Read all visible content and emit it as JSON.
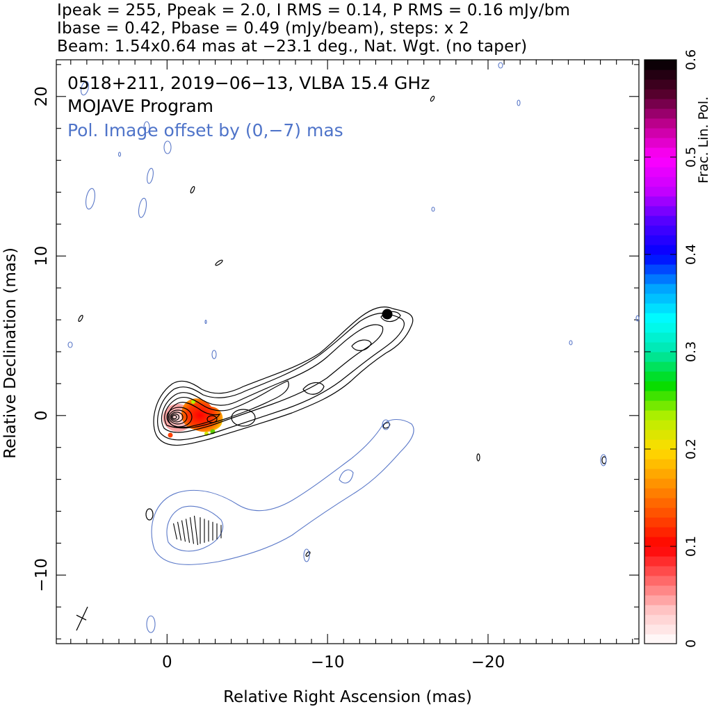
{
  "header": {
    "line1": "Ipeak = 255, Ppeak = 2.0, I RMS = 0.14, P RMS = 0.16 mJy/bm",
    "line2": "Ibase = 0.42, Pbase = 0.49 (mJy/beam), steps: x 2",
    "line3": "Beam: 1.54x0.64 mas at −23.1 deg., Nat. Wgt. (no taper)"
  },
  "annotations": {
    "source": "0518+211, 2019−06−13, VLBA 15.4 GHz",
    "program": "MOJAVE Program",
    "offset_note": "Pol. Image offset by (0,−7) mas"
  },
  "colors": {
    "total_intensity_contours": "#000000",
    "polarized_contours": "#5a78c8",
    "offset_note_text": "#4f74c9"
  },
  "chart_data": {
    "type": "heatmap",
    "title": "",
    "xlabel": "Relative Right Ascension (mas)",
    "ylabel": "Relative Declination (mas)",
    "xlim": [
      6.9,
      -29.4
    ],
    "ylim": [
      -14.3,
      22.3
    ],
    "x_ticks": [
      0,
      -10,
      -20
    ],
    "x_tick_labels": [
      "0",
      "−10",
      "−20"
    ],
    "y_ticks": [
      -10,
      0,
      10,
      20
    ],
    "y_tick_labels": [
      "−10",
      "0",
      "10",
      "20"
    ],
    "colorbar": {
      "label": "Frac. Lin. Pol.",
      "range": [
        0,
        0.6
      ],
      "ticks": [
        0,
        0.1,
        0.2,
        0.3,
        0.4,
        0.5,
        0.6
      ],
      "tick_labels": [
        "0",
        "0.1",
        "0.2",
        "0.3",
        "0.4",
        "0.5",
        "0.6"
      ],
      "colormap": [
        "#ffffff",
        "#ffc8c8",
        "#ff6464",
        "#ff0000",
        "#ff5000",
        "#ff9600",
        "#ffdc00",
        "#b4f000",
        "#00dc00",
        "#00e6aa",
        "#00ffff",
        "#00a0ff",
        "#0000ff",
        "#5000ff",
        "#c800ff",
        "#ff00ff",
        "#c00090",
        "#500028",
        "#000000"
      ]
    },
    "intensity_peak_mJy_per_beam": 255,
    "polarization_peak_mJy_per_beam": 2.0,
    "contour_base_mJy_per_beam": 0.42,
    "contour_step_factor": 2,
    "beam": {
      "major_mas": 1.54,
      "minor_mas": 0.64,
      "pa_deg": -23.1
    },
    "pol_image_offset_mas": [
      0,
      -7
    ]
  }
}
